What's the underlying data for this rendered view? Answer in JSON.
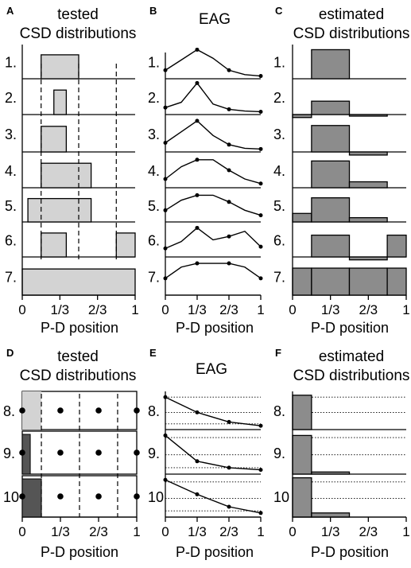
{
  "colors": {
    "light_fill": "#d3d3d3",
    "mid_fill": "#8c8c8c",
    "dark_fill": "#555555",
    "line": "#000000"
  },
  "ticks": [
    "0",
    "1/3",
    "2/3",
    "1"
  ],
  "xlabel": "P-D position",
  "top": {
    "row_labels": [
      "1.",
      "2.",
      "3.",
      "4.",
      "5.",
      "6.",
      "7."
    ],
    "panel_A": {
      "letter": "A",
      "title_line1": "tested",
      "title_line2": "CSD distributions"
    },
    "panel_B": {
      "letter": "B",
      "title": "EAG"
    },
    "panel_C": {
      "letter": "C",
      "title_line1": "estimated",
      "title_line2": "CSD distributions"
    }
  },
  "bottom": {
    "row_labels": [
      "8.",
      "9.",
      "10"
    ],
    "panel_D": {
      "letter": "D",
      "title_line1": "tested",
      "title_line2": "CSD distributions"
    },
    "panel_E": {
      "letter": "E",
      "title": "EAG"
    },
    "panel_F": {
      "letter": "F",
      "title_line1": "estimated",
      "title_line2": "CSD distributions"
    }
  },
  "chart_data": [
    {
      "panel": "A",
      "type": "step",
      "xlim": [
        0,
        1
      ],
      "rows": [
        {
          "label": "1.",
          "intervals": [
            [
              0.167,
              0.5
            ]
          ]
        },
        {
          "label": "2.",
          "intervals": [
            [
              0.28,
              0.39
            ]
          ]
        },
        {
          "label": "3.",
          "intervals": [
            [
              0.167,
              0.39
            ]
          ]
        },
        {
          "label": "4.",
          "intervals": [
            [
              0.167,
              0.61
            ]
          ]
        },
        {
          "label": "5.",
          "intervals": [
            [
              0.05,
              0.61
            ]
          ]
        },
        {
          "label": "6.",
          "intervals": [
            [
              0.167,
              0.39
            ],
            [
              0.833,
              1.0
            ]
          ]
        },
        {
          "label": "7.",
          "intervals": [
            [
              0.0,
              1.0
            ]
          ]
        }
      ],
      "dashed_lines_x": [
        0.167,
        0.5,
        0.833
      ]
    },
    {
      "panel": "B",
      "type": "line",
      "x": [
        0,
        0.167,
        0.333,
        0.5,
        0.667,
        0.833,
        1.0
      ],
      "series": [
        {
          "label": "1.",
          "y": [
            0.25,
            0.55,
            0.85,
            0.6,
            0.25,
            0.12,
            0.08
          ]
        },
        {
          "label": "2.",
          "y": [
            0.2,
            0.35,
            0.9,
            0.3,
            0.15,
            0.1,
            0.08
          ]
        },
        {
          "label": "3.",
          "y": [
            0.25,
            0.55,
            0.85,
            0.45,
            0.2,
            0.1,
            0.08
          ]
        },
        {
          "label": "4.",
          "y": [
            0.25,
            0.6,
            0.8,
            0.8,
            0.5,
            0.25,
            0.12
          ]
        },
        {
          "label": "5.",
          "y": [
            0.35,
            0.65,
            0.8,
            0.8,
            0.6,
            0.35,
            0.2
          ]
        },
        {
          "label": "6.",
          "y": [
            0.25,
            0.45,
            0.85,
            0.5,
            0.6,
            0.75,
            0.3
          ]
        },
        {
          "label": "7.",
          "y": [
            0.45,
            0.75,
            0.85,
            0.85,
            0.85,
            0.75,
            0.45
          ]
        }
      ]
    },
    {
      "panel": "C",
      "type": "bar",
      "bins": [
        [
          0,
          0.167
        ],
        [
          0.167,
          0.5
        ],
        [
          0.5,
          0.833
        ],
        [
          0.833,
          1.0
        ]
      ],
      "rows": [
        {
          "label": "1.",
          "values": [
            0,
            1.0,
            0,
            0
          ]
        },
        {
          "label": "2.",
          "values": [
            -0.1,
            0.45,
            -0.03,
            0
          ]
        },
        {
          "label": "3.",
          "values": [
            0,
            0.85,
            -0.1,
            0
          ]
        },
        {
          "label": "4.",
          "values": [
            0,
            0.9,
            0.2,
            0
          ]
        },
        {
          "label": "5.",
          "values": [
            0.3,
            0.85,
            0.15,
            0
          ]
        },
        {
          "label": "6.",
          "values": [
            0,
            0.75,
            -0.1,
            0.75
          ]
        },
        {
          "label": "7.",
          "values": [
            0.85,
            0.85,
            0.85,
            0.85
          ]
        }
      ]
    },
    {
      "panel": "D",
      "type": "step",
      "xlim": [
        0,
        1
      ],
      "rows": [
        {
          "label": "8.",
          "intervals": [
            [
              0,
              0.167
            ]
          ],
          "shade": "light"
        },
        {
          "label": "9.",
          "intervals": [
            [
              0,
              0.07
            ]
          ],
          "shade": "dark"
        },
        {
          "label": "10",
          "intervals": [
            [
              0,
              0.167
            ]
          ],
          "shade": "dark"
        }
      ],
      "dots_x": [
        0,
        0.333,
        0.667,
        1.0
      ],
      "dashed_lines_x": [
        0.167,
        0.5,
        0.833
      ]
    },
    {
      "panel": "E",
      "type": "line",
      "x": [
        0,
        0.333,
        0.667,
        1.0
      ],
      "series": [
        {
          "label": "8.",
          "y": [
            0.85,
            0.45,
            0.2,
            0.1
          ]
        },
        {
          "label": "9.",
          "y": [
            0.9,
            0.3,
            0.15,
            0.1
          ]
        },
        {
          "label": "10",
          "y": [
            0.9,
            0.55,
            0.25,
            0.1
          ]
        }
      ]
    },
    {
      "panel": "F",
      "type": "bar",
      "bins": [
        [
          0,
          0.167
        ],
        [
          0.167,
          0.5
        ],
        [
          0.5,
          0.833
        ],
        [
          0.833,
          1.0
        ]
      ],
      "rows": [
        {
          "label": "8.",
          "values": [
            0.9,
            0,
            0,
            0
          ]
        },
        {
          "label": "9.",
          "values": [
            0.9,
            0.05,
            0,
            0
          ]
        },
        {
          "label": "10",
          "values": [
            0.95,
            0.1,
            0,
            0
          ]
        }
      ]
    }
  ]
}
